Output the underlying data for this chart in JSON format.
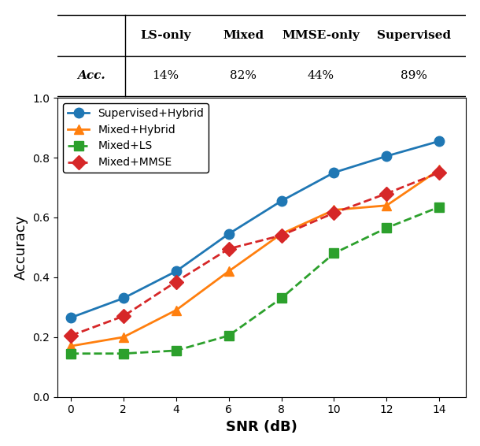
{
  "table": {
    "col_headers": [
      "LS-only",
      "Mixed",
      "MMSE-only",
      "Supervised"
    ],
    "row_label": "Acc.",
    "values": [
      "14%",
      "82%",
      "44%",
      "89%"
    ]
  },
  "snr": [
    0,
    2,
    4,
    6,
    8,
    10,
    12,
    14
  ],
  "supervised_hybrid": [
    0.265,
    0.33,
    0.42,
    0.545,
    0.655,
    0.75,
    0.805,
    0.855
  ],
  "mixed_hybrid": [
    0.17,
    0.2,
    0.29,
    0.42,
    0.545,
    0.625,
    0.64,
    0.76
  ],
  "mixed_ls": [
    0.145,
    0.145,
    0.155,
    0.205,
    0.33,
    0.48,
    0.565,
    0.635
  ],
  "mixed_mmse": [
    0.205,
    0.27,
    0.385,
    0.495,
    0.54,
    0.615,
    0.68,
    0.75
  ],
  "colors": {
    "supervised_hybrid": "#1f77b4",
    "mixed_hybrid": "#ff7f0e",
    "mixed_ls": "#2ca02c",
    "mixed_mmse": "#d62728"
  },
  "labels": {
    "supervised_hybrid": "Supervised+Hybrid",
    "mixed_hybrid": "Mixed+Hybrid",
    "mixed_ls": "Mixed+LS",
    "mixed_mmse": "Mixed+MMSE"
  },
  "markers": {
    "supervised_hybrid": "o",
    "mixed_hybrid": "^",
    "mixed_ls": "s",
    "mixed_mmse": "D"
  },
  "linestyles": {
    "supervised_hybrid": "-",
    "mixed_hybrid": "-",
    "mixed_ls": "--",
    "mixed_mmse": "--"
  },
  "xlabel": "SNR (dB)",
  "ylabel": "Accuracy",
  "ylim": [
    0.0,
    1.0
  ],
  "xlim": [
    -0.5,
    15
  ],
  "yticks": [
    0.0,
    0.2,
    0.4,
    0.6,
    0.8,
    1.0
  ],
  "xticks": [
    0,
    2,
    4,
    6,
    8,
    10,
    12,
    14
  ],
  "marker_size": 9,
  "line_width": 2.0,
  "fig_width": 6.1,
  "fig_height": 5.66
}
